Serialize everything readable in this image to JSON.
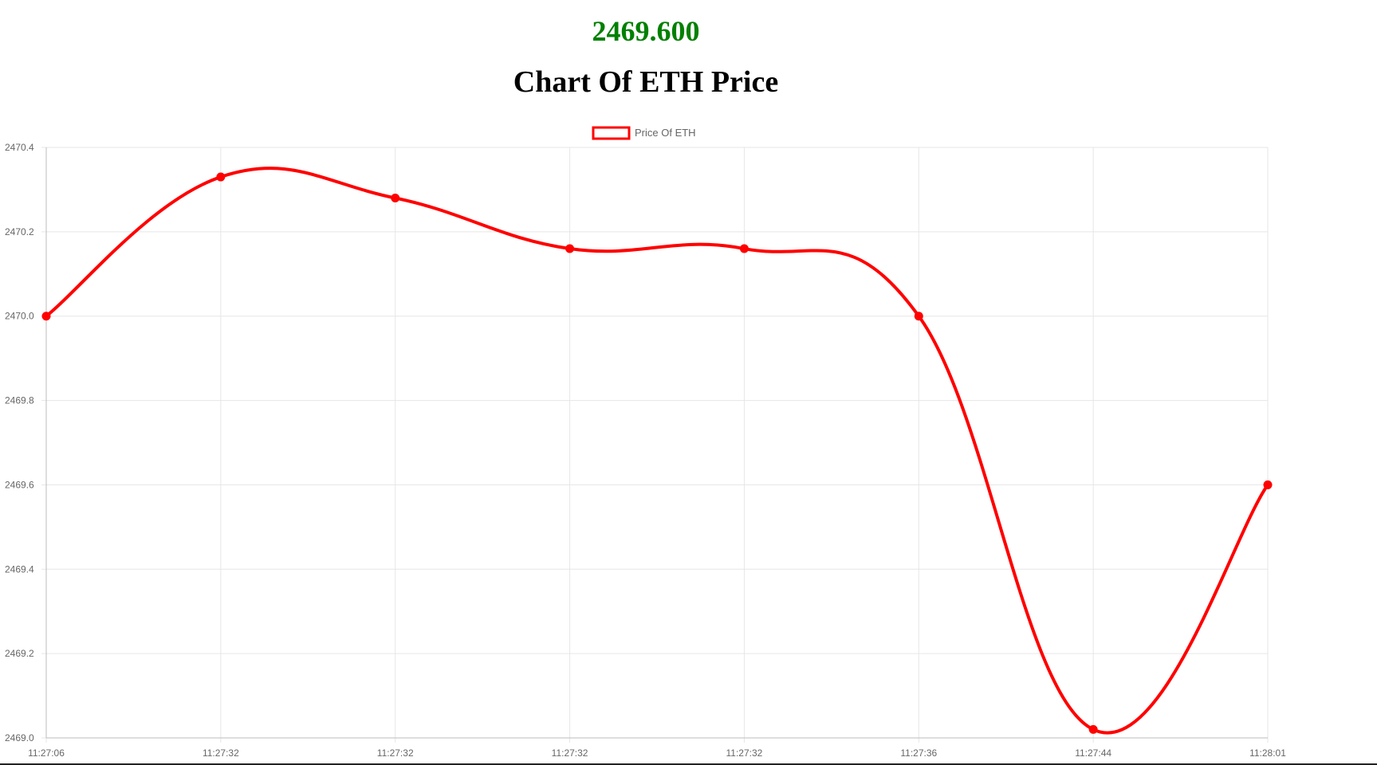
{
  "header": {
    "current_price": "2469.600",
    "title": "Chart Of ETH Price"
  },
  "colors": {
    "price": "#008000",
    "series": "#ff0000",
    "grid": "#e6e6e6",
    "tick_text": "#666666"
  },
  "chart_data": {
    "type": "line",
    "title": "Chart Of ETH Price",
    "categories": [
      "11:27:06",
      "11:27:32",
      "11:27:32",
      "11:27:32",
      "11:27:32",
      "11:27:36",
      "11:27:44",
      "11:28:01"
    ],
    "series": [
      {
        "name": "Price Of ETH",
        "values": [
          2470.0,
          2470.33,
          2470.28,
          2470.16,
          2470.16,
          2470.0,
          2469.02,
          2469.6
        ]
      }
    ],
    "ylim": [
      2469.0,
      2470.4
    ],
    "yticks": [
      "2469.0",
      "2469.2",
      "2469.4",
      "2469.6",
      "2469.8",
      "2470.0",
      "2470.2",
      "2470.4"
    ],
    "xlabel": "",
    "ylabel": "",
    "grid": true,
    "legend_position": "top-center",
    "smooth": true
  }
}
